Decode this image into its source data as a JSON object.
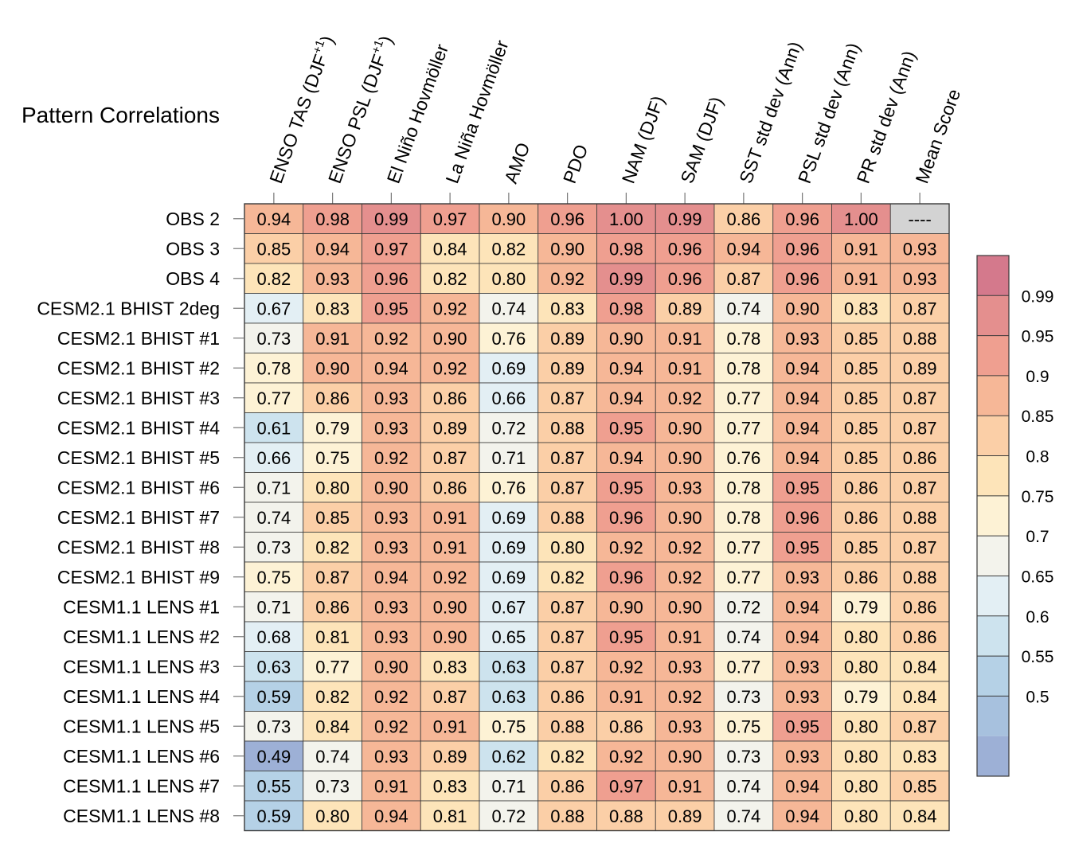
{
  "chart_data": {
    "type": "heatmap",
    "title": "Pattern Correlations",
    "columns": [
      "ENSO TAS (DJF+1)",
      "ENSO PSL (DJF+1)",
      "El Niño Hovmöller",
      "La Niña Hovmöller",
      "AMO",
      "PDO",
      "NAM (DJF)",
      "SAM (DJF)",
      "SST std dev (Ann)",
      "PSL std dev (Ann)",
      "PR std dev (Ann)",
      "Mean Score"
    ],
    "rows": [
      "OBS 2",
      "OBS 3",
      "OBS 4",
      "CESM2.1 BHIST 2deg",
      "CESM2.1 BHIST #1",
      "CESM2.1 BHIST #2",
      "CESM2.1 BHIST #3",
      "CESM2.1 BHIST #4",
      "CESM2.1 BHIST #5",
      "CESM2.1 BHIST #6",
      "CESM2.1 BHIST #7",
      "CESM2.1 BHIST #8",
      "CESM2.1 BHIST #9",
      "CESM1.1 LENS #1",
      "CESM1.1 LENS #2",
      "CESM1.1 LENS #3",
      "CESM1.1 LENS #4",
      "CESM1.1 LENS #5",
      "CESM1.1 LENS #6",
      "CESM1.1 LENS #7",
      "CESM1.1 LENS #8"
    ],
    "values": [
      [
        "0.94",
        "0.98",
        "0.99",
        "0.97",
        "0.90",
        "0.96",
        "1.00",
        "0.99",
        "0.86",
        "0.96",
        "1.00",
        "----"
      ],
      [
        "0.85",
        "0.94",
        "0.97",
        "0.84",
        "0.82",
        "0.90",
        "0.98",
        "0.96",
        "0.94",
        "0.96",
        "0.91",
        "0.93"
      ],
      [
        "0.82",
        "0.93",
        "0.96",
        "0.82",
        "0.80",
        "0.92",
        "0.99",
        "0.96",
        "0.87",
        "0.96",
        "0.91",
        "0.93"
      ],
      [
        "0.67",
        "0.83",
        "0.95",
        "0.92",
        "0.74",
        "0.83",
        "0.98",
        "0.89",
        "0.74",
        "0.90",
        "0.83",
        "0.87"
      ],
      [
        "0.73",
        "0.91",
        "0.92",
        "0.90",
        "0.76",
        "0.89",
        "0.90",
        "0.91",
        "0.78",
        "0.93",
        "0.85",
        "0.88"
      ],
      [
        "0.78",
        "0.90",
        "0.94",
        "0.92",
        "0.69",
        "0.89",
        "0.94",
        "0.91",
        "0.78",
        "0.94",
        "0.85",
        "0.89"
      ],
      [
        "0.77",
        "0.86",
        "0.93",
        "0.86",
        "0.66",
        "0.87",
        "0.94",
        "0.92",
        "0.77",
        "0.94",
        "0.85",
        "0.87"
      ],
      [
        "0.61",
        "0.79",
        "0.93",
        "0.89",
        "0.72",
        "0.88",
        "0.95",
        "0.90",
        "0.77",
        "0.94",
        "0.85",
        "0.87"
      ],
      [
        "0.66",
        "0.75",
        "0.92",
        "0.87",
        "0.71",
        "0.87",
        "0.94",
        "0.90",
        "0.76",
        "0.94",
        "0.85",
        "0.86"
      ],
      [
        "0.71",
        "0.80",
        "0.90",
        "0.86",
        "0.76",
        "0.87",
        "0.95",
        "0.93",
        "0.78",
        "0.95",
        "0.86",
        "0.87"
      ],
      [
        "0.74",
        "0.85",
        "0.93",
        "0.91",
        "0.69",
        "0.88",
        "0.96",
        "0.90",
        "0.78",
        "0.96",
        "0.86",
        "0.88"
      ],
      [
        "0.73",
        "0.82",
        "0.93",
        "0.91",
        "0.69",
        "0.80",
        "0.92",
        "0.92",
        "0.77",
        "0.95",
        "0.85",
        "0.87"
      ],
      [
        "0.75",
        "0.87",
        "0.94",
        "0.92",
        "0.69",
        "0.82",
        "0.96",
        "0.92",
        "0.77",
        "0.93",
        "0.86",
        "0.88"
      ],
      [
        "0.71",
        "0.86",
        "0.93",
        "0.90",
        "0.67",
        "0.87",
        "0.90",
        "0.90",
        "0.72",
        "0.94",
        "0.79",
        "0.86"
      ],
      [
        "0.68",
        "0.81",
        "0.93",
        "0.90",
        "0.65",
        "0.87",
        "0.95",
        "0.91",
        "0.74",
        "0.94",
        "0.80",
        "0.86"
      ],
      [
        "0.63",
        "0.77",
        "0.90",
        "0.83",
        "0.63",
        "0.87",
        "0.92",
        "0.93",
        "0.77",
        "0.93",
        "0.80",
        "0.84"
      ],
      [
        "0.59",
        "0.82",
        "0.92",
        "0.87",
        "0.63",
        "0.86",
        "0.91",
        "0.92",
        "0.73",
        "0.93",
        "0.79",
        "0.84"
      ],
      [
        "0.73",
        "0.84",
        "0.92",
        "0.91",
        "0.75",
        "0.88",
        "0.86",
        "0.93",
        "0.75",
        "0.95",
        "0.80",
        "0.87"
      ],
      [
        "0.49",
        "0.74",
        "0.93",
        "0.89",
        "0.62",
        "0.82",
        "0.92",
        "0.90",
        "0.73",
        "0.93",
        "0.80",
        "0.83"
      ],
      [
        "0.55",
        "0.73",
        "0.91",
        "0.83",
        "0.71",
        "0.86",
        "0.97",
        "0.91",
        "0.74",
        "0.94",
        "0.80",
        "0.85"
      ],
      [
        "0.59",
        "0.80",
        "0.94",
        "0.81",
        "0.72",
        "0.88",
        "0.88",
        "0.89",
        "0.74",
        "0.94",
        "0.80",
        "0.84"
      ]
    ],
    "missing_color": "#d3d3d3",
    "colorbar": {
      "labels": [
        "0.99",
        "0.95",
        "0.9",
        "0.85",
        "0.8",
        "0.75",
        "0.7",
        "0.65",
        "0.6",
        "0.55",
        "0.5"
      ],
      "colors_top_to_bottom": [
        "#d4798c",
        "#e48f8e",
        "#ef9f90",
        "#f6b797",
        "#fbcfa7",
        "#fde4b9",
        "#fdf2d5",
        "#f3f3ec",
        "#e3eff4",
        "#cde3ee",
        "#b5d1e6",
        "#a7c1de",
        "#9db0d6"
      ]
    }
  }
}
